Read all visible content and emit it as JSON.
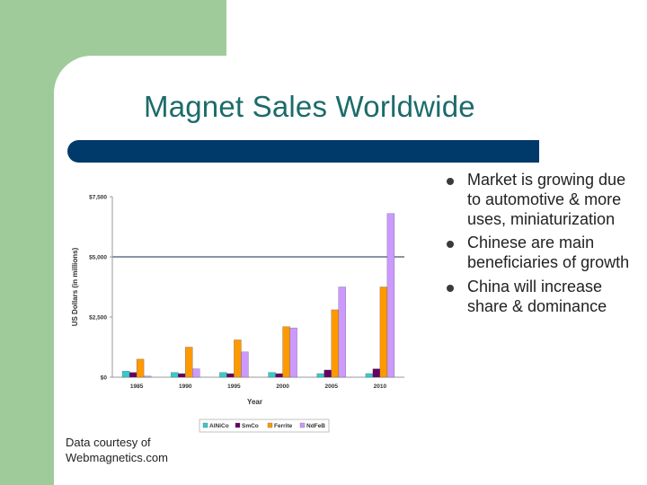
{
  "slide": {
    "title": "Magnet Sales Worldwide",
    "bullets": [
      "Market is growing due to automotive & more uses, miniaturization",
      "Chinese are main beneficiaries of growth",
      "China will increase share & dominance"
    ],
    "credit": [
      "Data courtesy of",
      "Webmagnetics.com"
    ]
  },
  "colors": {
    "green_block": "#9fcb9a",
    "title_bar": "#003a6b",
    "title_text": "#1c6b6b"
  },
  "chart_data": {
    "type": "bar",
    "categories": [
      "1985",
      "1990",
      "1995",
      "2000",
      "2005",
      "2010"
    ],
    "series": [
      {
        "name": "AlNiCo",
        "color": "#33cccc",
        "values": [
          250,
          200,
          200,
          200,
          150,
          150
        ]
      },
      {
        "name": "SmCo",
        "color": "#660066",
        "values": [
          200,
          150,
          150,
          150,
          300,
          350
        ]
      },
      {
        "name": "Ferrite",
        "color": "#ff9900",
        "values": [
          750,
          1250,
          1550,
          2100,
          2800,
          3750
        ]
      },
      {
        "name": "NdFeB",
        "color": "#cc99ff",
        "values": [
          50,
          350,
          1050,
          2050,
          3750,
          6800
        ]
      }
    ],
    "xlabel": "Year",
    "ylabel": "US Dollars (in millions)",
    "yticks": [
      "$0",
      "$2,500",
      "$5,000",
      "$7,500"
    ],
    "ytick_values": [
      0,
      2500,
      5000,
      7500
    ],
    "ylim": [
      0,
      7500
    ],
    "gridline_value": 5000,
    "legend": "bottom"
  }
}
